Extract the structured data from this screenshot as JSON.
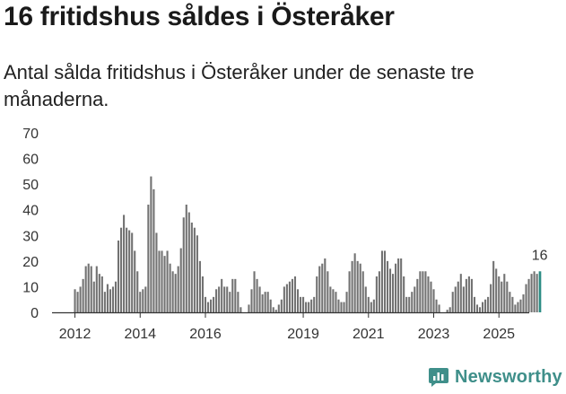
{
  "header": {
    "title": "16 fritidshus såldes i Österåker",
    "subtitle": "Antal sålda fritidshus i Österåker under de senaste tre månaderna."
  },
  "brand": {
    "name": "Newsworthy"
  },
  "colors": {
    "bar": "#727272",
    "highlight": "#2b8c84",
    "axis": "#333333",
    "grid": "#cccccc"
  },
  "chart_data": {
    "type": "bar",
    "title": "16 fritidshus såldes i Österåker",
    "subtitle": "Antal sålda fritidshus i Österåker under de senaste tre månaderna.",
    "xlabel": "",
    "ylabel": "",
    "ylim": [
      0,
      70
    ],
    "yticks": [
      0,
      10,
      20,
      30,
      40,
      50,
      60,
      70
    ],
    "x_start": "2012-01",
    "x_tick_labels": [
      "2012",
      "2014",
      "2016",
      "2019",
      "2021",
      "2023",
      "2025"
    ],
    "x_tick_month_index": [
      0,
      24,
      48,
      84,
      108,
      132,
      156
    ],
    "grid": false,
    "last_value_label": "16",
    "values": [
      9,
      8,
      10,
      13,
      18,
      19,
      18,
      12,
      18,
      15,
      14,
      8,
      11,
      9,
      10,
      12,
      28,
      33,
      38,
      33,
      32,
      31,
      24,
      16,
      8,
      9,
      10,
      42,
      53,
      48,
      31,
      24,
      24,
      22,
      24,
      19,
      16,
      15,
      18,
      25,
      37,
      42,
      39,
      35,
      33,
      30,
      20,
      14,
      6,
      4,
      5,
      6,
      9,
      10,
      13,
      10,
      10,
      8,
      13,
      13,
      8,
      2,
      0,
      0,
      3,
      9,
      16,
      13,
      10,
      7,
      8,
      8,
      5,
      2,
      1,
      3,
      5,
      10,
      11,
      12,
      13,
      14,
      9,
      6,
      6,
      4,
      4,
      5,
      6,
      14,
      18,
      19,
      21,
      16,
      10,
      9,
      8,
      5,
      4,
      4,
      8,
      16,
      20,
      23,
      20,
      19,
      16,
      10,
      6,
      4,
      5,
      14,
      16,
      24,
      24,
      20,
      17,
      15,
      19,
      21,
      21,
      14,
      6,
      6,
      8,
      10,
      13,
      16,
      16,
      16,
      14,
      12,
      9,
      5,
      3,
      0,
      0,
      1,
      2,
      8,
      10,
      12,
      15,
      10,
      13,
      14,
      13,
      6,
      3,
      2,
      4,
      5,
      6,
      11,
      20,
      17,
      14,
      12,
      15,
      12,
      8,
      6,
      3,
      4,
      5,
      7,
      11,
      13,
      15,
      16,
      15,
      16
    ]
  }
}
